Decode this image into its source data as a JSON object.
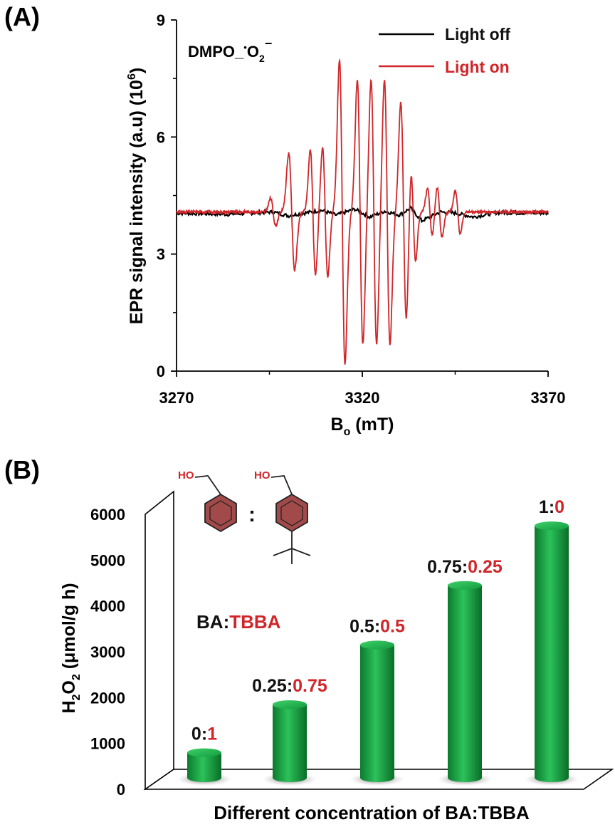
{
  "charts": [
    {
      "panel_label": "(A)",
      "type": "line",
      "annotation": {
        "main": "DMPO_",
        "dot": "•",
        "species": "O",
        "subscript": "2",
        "superscript": "−"
      },
      "ylabel": "EPR signal intensity (a.u) (10",
      "ylabel_exponent": "6",
      "ylabel_close": ")",
      "xlabel_main": "B",
      "xlabel_sub": "o",
      "xlabel_unit": " (mT)",
      "xlim": [
        3270,
        3370
      ],
      "ylim": [
        0,
        9
      ],
      "xticks": [
        "3270",
        "3320",
        "3370"
      ],
      "yticks": [
        "0",
        "3",
        "6",
        "9"
      ],
      "legend_position": "top-right",
      "series": [
        {
          "name": "Light off",
          "color": "#000000",
          "baseline": 4.05,
          "x": [
            3270,
            3284,
            3296,
            3300,
            3305,
            3309,
            3313,
            3318,
            3322,
            3326,
            3330,
            3333,
            3336,
            3341,
            3345,
            3350,
            3356,
            3370
          ],
          "y": [
            4.05,
            4.02,
            4.08,
            3.98,
            4.06,
            4.12,
            4.0,
            4.15,
            3.95,
            4.1,
            4.0,
            4.18,
            3.85,
            4.08,
            4.05,
            3.95,
            4.06,
            4.05
          ]
        },
        {
          "name": "Light on",
          "color": "#d0262a",
          "baseline": 4.08,
          "lines": [
            {
              "x": 3296.0,
              "a": 0.35,
              "w": 0.7
            },
            {
              "x": 3301.0,
              "a": 1.5,
              "w": 0.8
            },
            {
              "x": 3306.7,
              "a": 1.6,
              "w": 0.7
            },
            {
              "x": 3310.0,
              "a": 1.65,
              "w": 0.7
            },
            {
              "x": 3314.6,
              "a": 3.9,
              "w": 0.75
            },
            {
              "x": 3319.4,
              "a": 3.4,
              "w": 0.75
            },
            {
              "x": 3323.1,
              "a": 3.4,
              "w": 0.75
            },
            {
              "x": 3326.7,
              "a": 3.4,
              "w": 0.75
            },
            {
              "x": 3331.1,
              "a": 2.8,
              "w": 0.75
            },
            {
              "x": 3333.7,
              "a": 1.25,
              "w": 0.65
            },
            {
              "x": 3338.2,
              "a": 0.6,
              "w": 0.65
            },
            {
              "x": 3340.8,
              "a": 0.65,
              "w": 0.65
            },
            {
              "x": 3345.7,
              "a": 0.55,
              "w": 0.65
            }
          ]
        }
      ]
    },
    {
      "panel_label": "(B)",
      "type": "bar",
      "ylabel_main": "H",
      "ylabel_sub1": "2",
      "ylabel_mid": "O",
      "ylabel_sub2": "2",
      "ylabel_unit": " (μmol/g h)",
      "xlabel": "Different  concentration  of BA:TBBA",
      "ylim": [
        0,
        6000
      ],
      "yticks": [
        "0",
        "1000",
        "2000",
        "3000",
        "4000",
        "5000",
        "6000"
      ],
      "bar_color": "#1aa346",
      "categories": [
        {
          "ba": "0",
          "sep": ":",
          "tbba": "1"
        },
        {
          "ba": "0.25",
          "sep": ":",
          "tbba": "0.75"
        },
        {
          "ba": "0.5",
          "sep": ":",
          "tbba": "0.5"
        },
        {
          "ba": "0.75",
          "sep": ":",
          "tbba": "0.25"
        },
        {
          "ba": "1",
          "sep": ":",
          "tbba": "0"
        }
      ],
      "values": [
        550,
        1600,
        2900,
        4200,
        5500
      ],
      "inset": {
        "ho_left": "HO",
        "ho_right": "HO",
        "colon": ":",
        "ratio_ba": "BA",
        "ratio_sep": ":",
        "ratio_tbba": "TBBA",
        "ring_color": "#a24a4a"
      }
    }
  ]
}
